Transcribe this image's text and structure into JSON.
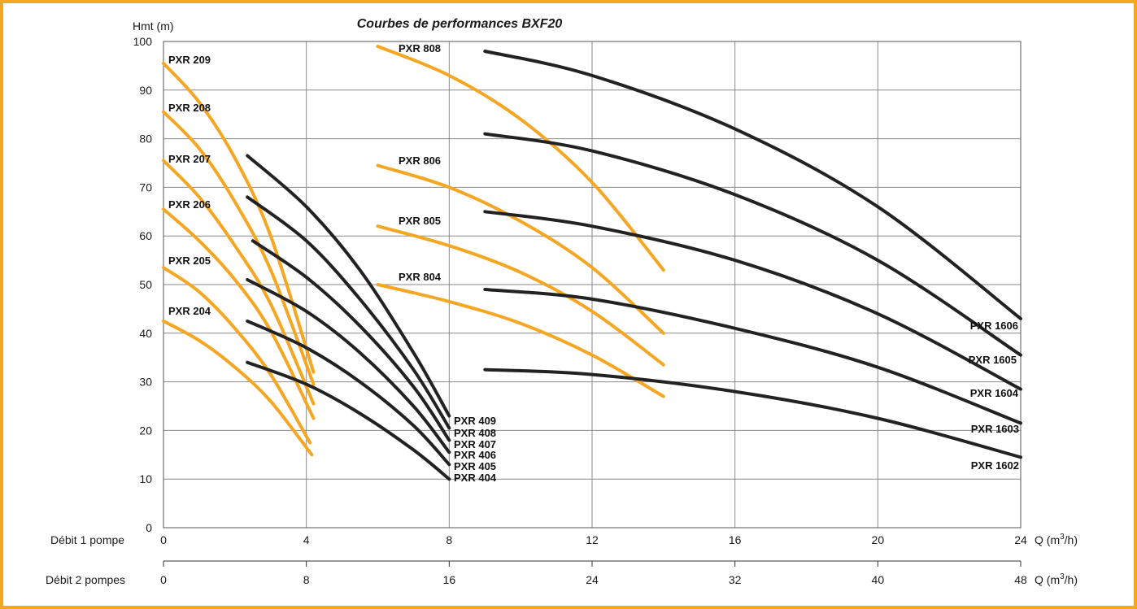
{
  "chart_data": {
    "type": "line",
    "title": "Courbes de performances BXF20",
    "ylabel": "Hmt (m)",
    "xlabel": "Q (m³/h)",
    "xlabel_unit_prefix": "Q (m",
    "xlabel_unit_sup": "3",
    "xlabel_unit_suffix": "/h)",
    "x_axis_1_label": "Débit 1 pompe",
    "x_axis_2_label": "Débit 2 pompes",
    "xlim": [
      0,
      24
    ],
    "ylim": [
      0,
      100
    ],
    "x_ticks_1": [
      "0",
      "4",
      "8",
      "12",
      "16",
      "20",
      "24"
    ],
    "x_ticks_2": [
      "0",
      "8",
      "16",
      "24",
      "32",
      "40",
      "48"
    ],
    "y_ticks": [
      "0",
      "10",
      "20",
      "30",
      "40",
      "50",
      "60",
      "70",
      "80",
      "90",
      "100"
    ],
    "grid": true,
    "colors": {
      "orange": "#f5a623",
      "black": "#222222"
    },
    "series": [
      {
        "name": "PXR 209",
        "color": "orange",
        "points": [
          [
            0,
            95.5
          ],
          [
            1.0,
            87.5
          ],
          [
            2.0,
            76.0
          ],
          [
            3.0,
            60.0
          ],
          [
            4.2,
            32.0
          ]
        ]
      },
      {
        "name": "PXR 208",
        "color": "orange",
        "points": [
          [
            0,
            85.5
          ],
          [
            1.0,
            78.0
          ],
          [
            2.0,
            67.0
          ],
          [
            3.0,
            53.0
          ],
          [
            4.2,
            29.5
          ]
        ]
      },
      {
        "name": "PXR 207",
        "color": "orange",
        "points": [
          [
            0,
            75.5
          ],
          [
            1.0,
            68.0
          ],
          [
            2.0,
            58.0
          ],
          [
            3.0,
            46.0
          ],
          [
            4.2,
            25.5
          ]
        ]
      },
      {
        "name": "PXR 206",
        "color": "orange",
        "points": [
          [
            0,
            65.5
          ],
          [
            1.0,
            59.0
          ],
          [
            2.0,
            51.0
          ],
          [
            3.0,
            40.5
          ],
          [
            4.2,
            22.5
          ]
        ]
      },
      {
        "name": "PXR 205",
        "color": "orange",
        "points": [
          [
            0,
            53.5
          ],
          [
            1.0,
            48.5
          ],
          [
            2.0,
            41.0
          ],
          [
            3.0,
            31.5
          ],
          [
            4.1,
            17.5
          ]
        ]
      },
      {
        "name": "PXR 204",
        "color": "orange",
        "points": [
          [
            0,
            42.5
          ],
          [
            1.0,
            38.5
          ],
          [
            2.0,
            33.0
          ],
          [
            3.0,
            26.0
          ],
          [
            4.15,
            15.0
          ]
        ]
      },
      {
        "name": "PXR 409",
        "color": "black",
        "points": [
          [
            2.35,
            76.5
          ],
          [
            4.0,
            66.0
          ],
          [
            5.5,
            53.0
          ],
          [
            7.0,
            36.0
          ],
          [
            8.0,
            23.0
          ]
        ]
      },
      {
        "name": "PXR 408",
        "color": "black",
        "points": [
          [
            2.35,
            68.0
          ],
          [
            4.0,
            59.0
          ],
          [
            5.5,
            47.0
          ],
          [
            7.0,
            32.5
          ],
          [
            8.0,
            20.5
          ]
        ]
      },
      {
        "name": "PXR 407",
        "color": "black",
        "points": [
          [
            2.5,
            59.0
          ],
          [
            4.0,
            51.5
          ],
          [
            5.5,
            41.5
          ],
          [
            7.0,
            29.0
          ],
          [
            8.0,
            18.0
          ]
        ]
      },
      {
        "name": "PXR 406",
        "color": "black",
        "points": [
          [
            2.35,
            51.0
          ],
          [
            4.0,
            44.5
          ],
          [
            5.5,
            36.0
          ],
          [
            7.0,
            25.0
          ],
          [
            8.0,
            15.5
          ]
        ]
      },
      {
        "name": "PXR 405",
        "color": "black",
        "points": [
          [
            2.35,
            42.5
          ],
          [
            4.0,
            37.0
          ],
          [
            5.5,
            30.0
          ],
          [
            7.0,
            21.0
          ],
          [
            8.0,
            13.0
          ]
        ]
      },
      {
        "name": "PXR 404",
        "color": "black",
        "points": [
          [
            2.35,
            34.0
          ],
          [
            4.0,
            29.5
          ],
          [
            5.5,
            23.5
          ],
          [
            7.0,
            16.0
          ],
          [
            8.0,
            10.0
          ]
        ]
      },
      {
        "name": "PXR 808",
        "color": "orange",
        "points": [
          [
            6.0,
            99.0
          ],
          [
            8.0,
            93.0
          ],
          [
            10.0,
            84.0
          ],
          [
            12.0,
            71.0
          ],
          [
            14.0,
            53.0
          ]
        ]
      },
      {
        "name": "PXR 806",
        "color": "orange",
        "points": [
          [
            6.0,
            74.5
          ],
          [
            8.0,
            70.0
          ],
          [
            10.0,
            63.0
          ],
          [
            12.0,
            53.5
          ],
          [
            14.0,
            40.0
          ]
        ]
      },
      {
        "name": "PXR 805",
        "color": "orange",
        "points": [
          [
            6.0,
            62.0
          ],
          [
            8.0,
            58.0
          ],
          [
            10.0,
            52.5
          ],
          [
            12.0,
            44.5
          ],
          [
            14.0,
            33.5
          ]
        ]
      },
      {
        "name": "PXR 804",
        "color": "orange",
        "points": [
          [
            6.0,
            50.0
          ],
          [
            8.0,
            46.5
          ],
          [
            10.0,
            42.0
          ],
          [
            12.0,
            35.5
          ],
          [
            14.0,
            27.0
          ]
        ]
      },
      {
        "name": "PXR 1606",
        "color": "black",
        "points": [
          [
            9.0,
            98.0
          ],
          [
            12.0,
            93.0
          ],
          [
            16.0,
            82.0
          ],
          [
            20.0,
            66.0
          ],
          [
            24.0,
            43.0
          ]
        ]
      },
      {
        "name": "PXR 1605",
        "color": "black",
        "points": [
          [
            9.0,
            81.0
          ],
          [
            12.0,
            77.5
          ],
          [
            16.0,
            68.5
          ],
          [
            20.0,
            55.0
          ],
          [
            24.0,
            35.5
          ]
        ]
      },
      {
        "name": "PXR 1604",
        "color": "black",
        "points": [
          [
            9.0,
            65.0
          ],
          [
            12.0,
            62.0
          ],
          [
            16.0,
            55.0
          ],
          [
            20.0,
            44.0
          ],
          [
            24.0,
            28.5
          ]
        ]
      },
      {
        "name": "PXR 1603",
        "color": "black",
        "points": [
          [
            9.0,
            49.0
          ],
          [
            12.0,
            47.0
          ],
          [
            16.0,
            41.0
          ],
          [
            20.0,
            33.0
          ],
          [
            24.0,
            21.5
          ]
        ]
      },
      {
        "name": "PXR 1602",
        "color": "black",
        "points": [
          [
            9.0,
            32.5
          ],
          [
            12.0,
            31.5
          ],
          [
            16.0,
            28.0
          ],
          [
            20.0,
            22.5
          ],
          [
            24.0,
            14.5
          ]
        ]
      }
    ]
  }
}
